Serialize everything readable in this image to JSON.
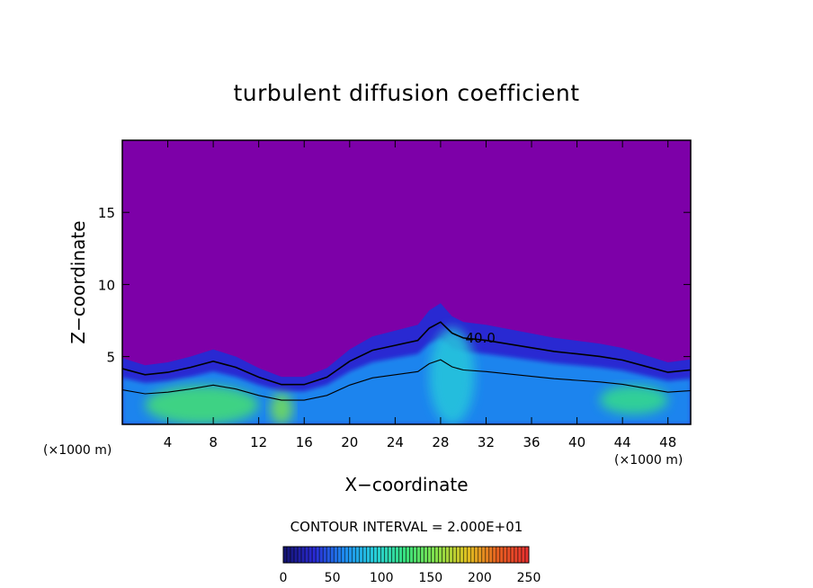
{
  "chart_data": {
    "type": "heatmap",
    "title": "turbulent diffusion coefficient",
    "xlabel": "X−coordinate",
    "ylabel": "Z−coordinate",
    "x_unit_left": "(×1000 m)",
    "x_unit_right": "(×1000 m)",
    "xlim": [
      0,
      50
    ],
    "ylim": [
      0.3,
      20
    ],
    "x_ticks": [
      4,
      8,
      12,
      16,
      20,
      24,
      28,
      32,
      36,
      40,
      44,
      48
    ],
    "y_ticks": [
      5,
      10,
      15
    ],
    "contour_interval_text": "CONTOUR INTERVAL = 2.000E+01",
    "contour_label": "40.0",
    "contour_label_pos": {
      "x": 31.5,
      "z": 6.3
    },
    "colorbar": {
      "range": [
        0,
        250
      ],
      "ticks": [
        0,
        50,
        100,
        150,
        200,
        250
      ],
      "stops": [
        "#13136e",
        "#2a2ad6",
        "#1d8cf0",
        "#27cfd8",
        "#38e07a",
        "#86e04a",
        "#e0c020",
        "#e86020",
        "#e83030"
      ]
    },
    "background_color": "#7d00a8",
    "turbulent_top_z": [
      [
        0,
        4.9
      ],
      [
        2,
        4.4
      ],
      [
        4,
        4.6
      ],
      [
        6,
        5.0
      ],
      [
        8,
        5.5
      ],
      [
        10,
        5.0
      ],
      [
        12,
        4.2
      ],
      [
        14,
        3.6
      ],
      [
        16,
        3.6
      ],
      [
        18,
        4.2
      ],
      [
        20,
        5.5
      ],
      [
        22,
        6.4
      ],
      [
        24,
        6.8
      ],
      [
        26,
        7.2
      ],
      [
        27,
        8.2
      ],
      [
        28,
        8.7
      ],
      [
        29,
        7.8
      ],
      [
        30,
        7.4
      ],
      [
        32,
        7.2
      ],
      [
        34,
        6.9
      ],
      [
        36,
        6.6
      ],
      [
        38,
        6.3
      ],
      [
        40,
        6.1
      ],
      [
        42,
        5.9
      ],
      [
        44,
        5.6
      ],
      [
        46,
        5.1
      ],
      [
        48,
        4.6
      ],
      [
        50,
        4.8
      ]
    ],
    "high_k_regions": [
      {
        "x": [
          2,
          12
        ],
        "z": [
          0.3,
          3.0
        ],
        "level": 130
      },
      {
        "x": [
          13,
          15
        ],
        "z": [
          0.3,
          2.5
        ],
        "level": 150
      },
      {
        "x": [
          27,
          31
        ],
        "z": [
          0.3,
          7.0
        ],
        "level": 90
      },
      {
        "x": [
          42,
          48
        ],
        "z": [
          1.0,
          3.0
        ],
        "level": 120
      }
    ]
  }
}
